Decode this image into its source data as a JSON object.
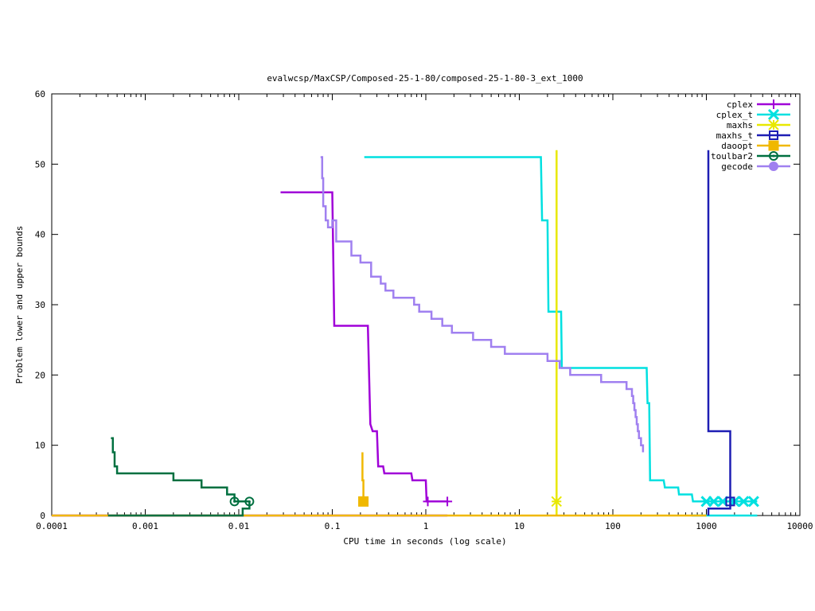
{
  "chart_data": {
    "type": "line",
    "title": "evalwcsp/MaxCSP/Composed-25-1-80/composed-25-1-80-3_ext_1000",
    "xlabel": "CPU time in seconds (log scale)",
    "ylabel": "Problem lower and upper bounds",
    "xscale": "log",
    "xlim": [
      0.0001,
      10000
    ],
    "ylim": [
      0,
      60
    ],
    "x_ticks": [
      {
        "v": 0.0001,
        "label": "0.0001"
      },
      {
        "v": 0.001,
        "label": "0.001"
      },
      {
        "v": 0.01,
        "label": "0.01"
      },
      {
        "v": 0.1,
        "label": "0.1"
      },
      {
        "v": 1,
        "label": "1"
      },
      {
        "v": 10,
        "label": "10"
      },
      {
        "v": 100,
        "label": "100"
      },
      {
        "v": 1000,
        "label": "1000"
      },
      {
        "v": 10000,
        "label": "10000"
      }
    ],
    "y_ticks": [
      {
        "v": 0,
        "label": "0"
      },
      {
        "v": 10,
        "label": "10"
      },
      {
        "v": 20,
        "label": "20"
      },
      {
        "v": 30,
        "label": "30"
      },
      {
        "v": 40,
        "label": "40"
      },
      {
        "v": 50,
        "label": "50"
      },
      {
        "v": 60,
        "label": "60"
      }
    ],
    "grid": false,
    "legend_position": "top-right",
    "series": [
      {
        "name": "cplex",
        "color": "#a000d8",
        "marker": "plus",
        "upper": [
          [
            0.028,
            46
          ],
          [
            0.1,
            46
          ],
          [
            0.105,
            27
          ],
          [
            0.24,
            27
          ],
          [
            0.255,
            13
          ],
          [
            0.27,
            12
          ],
          [
            0.3,
            12
          ],
          [
            0.31,
            7
          ],
          [
            0.35,
            7
          ],
          [
            0.36,
            6
          ],
          [
            0.7,
            6
          ],
          [
            0.72,
            5
          ],
          [
            1.0,
            5
          ],
          [
            1.02,
            2
          ],
          [
            1.7,
            2
          ]
        ],
        "lower": [
          [
            0.0001,
            0
          ],
          [
            1.7,
            0
          ]
        ],
        "marks": [
          [
            1.05,
            2
          ],
          [
            1.7,
            2
          ]
        ]
      },
      {
        "name": "cplex_t",
        "color": "#00e0e0",
        "marker": "x",
        "upper": [
          [
            0.22,
            51
          ],
          [
            17,
            51
          ],
          [
            17.5,
            42
          ],
          [
            20,
            42
          ],
          [
            20.5,
            29
          ],
          [
            28,
            29
          ],
          [
            28.5,
            21
          ],
          [
            230,
            21
          ],
          [
            235,
            16
          ],
          [
            245,
            16
          ],
          [
            250,
            5
          ],
          [
            350,
            5
          ],
          [
            360,
            4
          ],
          [
            500,
            4
          ],
          [
            510,
            3
          ],
          [
            700,
            3
          ],
          [
            720,
            2
          ],
          [
            3500,
            2
          ]
        ],
        "lower": [
          [
            700,
            0
          ],
          [
            3500,
            0
          ]
        ],
        "marks": [
          [
            1000,
            2
          ],
          [
            1200,
            2
          ],
          [
            1500,
            2
          ],
          [
            2000,
            2
          ],
          [
            2500,
            2
          ],
          [
            3200,
            2
          ]
        ]
      },
      {
        "name": "maxhs",
        "color": "#e8e800",
        "marker": "star",
        "upper": [
          [
            25,
            52
          ],
          [
            25,
            2
          ]
        ],
        "lower": [
          [
            25,
            0
          ],
          [
            25,
            2
          ]
        ],
        "marks": [
          [
            25,
            2
          ]
        ]
      },
      {
        "name": "maxhs_t",
        "color": "#1e1eb4",
        "marker": "box",
        "upper": [
          [
            1050,
            52
          ],
          [
            1050,
            12
          ],
          [
            1800,
            12
          ],
          [
            1800,
            2
          ]
        ],
        "lower": [
          [
            1050,
            0
          ],
          [
            1050,
            1
          ],
          [
            1800,
            1
          ],
          [
            1800,
            2
          ]
        ],
        "marks": [
          [
            1800,
            2
          ]
        ]
      },
      {
        "name": "daoopt",
        "color": "#f0b800",
        "marker": "filled-box",
        "upper": [
          [
            0.21,
            9
          ],
          [
            0.21,
            5
          ],
          [
            0.215,
            5
          ],
          [
            0.215,
            2
          ]
        ],
        "lower": [
          [
            0.0001,
            0
          ],
          [
            1000,
            0
          ]
        ],
        "marks": [
          [
            0.215,
            2
          ]
        ]
      },
      {
        "name": "toulbar2",
        "color": "#007040",
        "marker": "circle",
        "upper": [
          [
            0.00043,
            11
          ],
          [
            0.00045,
            11
          ],
          [
            0.00045,
            9
          ],
          [
            0.00047,
            9
          ],
          [
            0.00047,
            7
          ],
          [
            0.0005,
            7
          ],
          [
            0.0005,
            6
          ],
          [
            0.002,
            6
          ],
          [
            0.002,
            5
          ],
          [
            0.004,
            5
          ],
          [
            0.004,
            4
          ],
          [
            0.0075,
            4
          ],
          [
            0.0075,
            3
          ],
          [
            0.009,
            3
          ],
          [
            0.009,
            2
          ],
          [
            0.013,
            2
          ]
        ],
        "lower": [
          [
            0.0004,
            0
          ],
          [
            0.011,
            0
          ],
          [
            0.011,
            1
          ],
          [
            0.013,
            1
          ],
          [
            0.013,
            2
          ]
        ],
        "marks": [
          [
            0.009,
            2
          ],
          [
            0.013,
            2
          ]
        ]
      },
      {
        "name": "gecode",
        "color": "#a080f0",
        "marker": "filled-circle",
        "upper": [
          [
            0.075,
            51
          ],
          [
            0.078,
            51
          ],
          [
            0.078,
            48
          ],
          [
            0.08,
            48
          ],
          [
            0.08,
            44
          ],
          [
            0.085,
            44
          ],
          [
            0.085,
            42
          ],
          [
            0.09,
            42
          ],
          [
            0.09,
            41
          ],
          [
            0.1,
            41
          ],
          [
            0.1,
            42
          ],
          [
            0.11,
            42
          ],
          [
            0.11,
            39
          ],
          [
            0.16,
            39
          ],
          [
            0.16,
            37
          ],
          [
            0.2,
            37
          ],
          [
            0.2,
            36
          ],
          [
            0.26,
            36
          ],
          [
            0.26,
            34
          ],
          [
            0.33,
            34
          ],
          [
            0.33,
            33
          ],
          [
            0.37,
            33
          ],
          [
            0.37,
            32
          ],
          [
            0.45,
            32
          ],
          [
            0.45,
            31
          ],
          [
            0.75,
            31
          ],
          [
            0.75,
            30
          ],
          [
            0.85,
            30
          ],
          [
            0.85,
            29
          ],
          [
            1.15,
            29
          ],
          [
            1.15,
            28
          ],
          [
            1.5,
            28
          ],
          [
            1.5,
            27
          ],
          [
            1.9,
            27
          ],
          [
            1.9,
            26
          ],
          [
            3.2,
            26
          ],
          [
            3.2,
            25
          ],
          [
            5,
            25
          ],
          [
            5,
            24
          ],
          [
            7,
            24
          ],
          [
            7,
            23
          ],
          [
            20,
            23
          ],
          [
            20,
            22
          ],
          [
            27,
            22
          ],
          [
            27,
            21
          ],
          [
            35,
            21
          ],
          [
            35,
            20
          ],
          [
            75,
            20
          ],
          [
            75,
            19
          ],
          [
            140,
            19
          ],
          [
            140,
            18
          ],
          [
            160,
            18
          ],
          [
            160,
            17
          ],
          [
            165,
            17
          ],
          [
            165,
            16
          ],
          [
            170,
            16
          ],
          [
            170,
            15
          ],
          [
            175,
            15
          ],
          [
            175,
            14
          ],
          [
            180,
            14
          ],
          [
            180,
            13
          ],
          [
            185,
            13
          ],
          [
            185,
            12
          ],
          [
            190,
            12
          ],
          [
            190,
            11
          ],
          [
            200,
            11
          ],
          [
            200,
            10
          ],
          [
            210,
            10
          ],
          [
            210,
            9
          ]
        ],
        "lower": [],
        "marks": []
      }
    ]
  }
}
